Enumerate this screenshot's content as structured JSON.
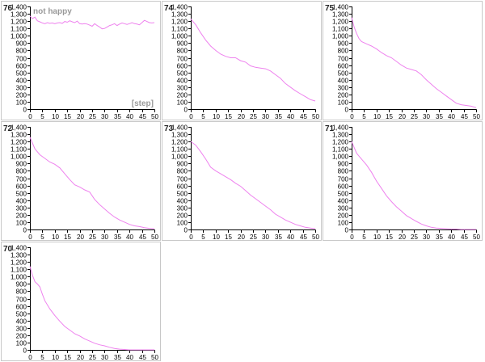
{
  "chart_data": {
    "type": "line",
    "xlim": [
      0,
      50
    ],
    "ylim": [
      0,
      1400
    ],
    "x_ticks": [
      0,
      5,
      10,
      15,
      20,
      25,
      30,
      35,
      40,
      45,
      50
    ],
    "y_ticks": [
      0,
      100,
      200,
      300,
      400,
      500,
      600,
      700,
      800,
      900,
      1000,
      1100,
      1200,
      1300,
      1400
    ],
    "x_tick_labels": [
      "0",
      "5",
      "10",
      "15",
      "20",
      "25",
      "30",
      "35",
      "40",
      "45",
      "50"
    ],
    "y_tick_labels": [
      "0",
      "100",
      "200",
      "300",
      "400",
      "500",
      "600",
      "700",
      "800",
      "900",
      "1,000",
      "1,100",
      "1,200",
      "1,300",
      "1,400"
    ],
    "series_color": "#ee82ee",
    "legend_labels": [
      "not happy",
      "[step]"
    ],
    "panels": [
      {
        "id": "76",
        "x": [
          0,
          1,
          2,
          3,
          4,
          5,
          6,
          7,
          8,
          9,
          10,
          11,
          12,
          13,
          14,
          15,
          16,
          17,
          18,
          19,
          20,
          21,
          22,
          23,
          24,
          25,
          26,
          27,
          28,
          29,
          30,
          31,
          32,
          33,
          34,
          35,
          36,
          37,
          38,
          39,
          40,
          41,
          42,
          43,
          44,
          45,
          46,
          47,
          48,
          49,
          50
        ],
        "y": [
          1270,
          1235,
          1255,
          1205,
          1190,
          1175,
          1165,
          1180,
          1170,
          1175,
          1165,
          1175,
          1180,
          1170,
          1195,
          1185,
          1205,
          1190,
          1180,
          1200,
          1165,
          1160,
          1165,
          1160,
          1145,
          1130,
          1165,
          1140,
          1120,
          1095,
          1100,
          1120,
          1140,
          1150,
          1165,
          1140,
          1160,
          1175,
          1165,
          1155,
          1165,
          1180,
          1165,
          1160,
          1150,
          1180,
          1210,
          1195,
          1180,
          1175,
          1180
        ]
      },
      {
        "id": "74",
        "x": [
          0,
          2,
          4,
          6,
          8,
          10,
          12,
          14,
          16,
          18,
          20,
          22,
          24,
          26,
          28,
          30,
          32,
          34,
          36,
          38,
          40,
          42,
          44,
          46,
          48,
          49,
          50
        ],
        "y": [
          1230,
          1150,
          1040,
          940,
          860,
          800,
          750,
          720,
          700,
          700,
          660,
          640,
          590,
          570,
          560,
          550,
          520,
          470,
          420,
          350,
          300,
          250,
          210,
          170,
          130,
          120,
          110
        ]
      },
      {
        "id": "75",
        "x": [
          0,
          1,
          2,
          3,
          4,
          6,
          8,
          10,
          12,
          14,
          16,
          18,
          20,
          22,
          24,
          26,
          28,
          30,
          32,
          34,
          36,
          38,
          40,
          42,
          44,
          46,
          48,
          50
        ],
        "y": [
          1250,
          1120,
          1030,
          960,
          920,
          890,
          860,
          820,
          770,
          730,
          700,
          650,
          600,
          560,
          540,
          520,
          470,
          400,
          340,
          280,
          230,
          180,
          130,
          80,
          60,
          50,
          40,
          20
        ]
      },
      {
        "id": "72",
        "x": [
          0,
          1,
          2,
          3,
          4,
          6,
          8,
          10,
          12,
          14,
          16,
          18,
          20,
          22,
          24,
          26,
          28,
          30,
          32,
          34,
          36,
          38,
          40,
          42,
          44,
          46,
          48,
          50
        ],
        "y": [
          1260,
          1180,
          1100,
          1060,
          1020,
          970,
          920,
          890,
          840,
          760,
          680,
          610,
          580,
          540,
          510,
          410,
          340,
          280,
          220,
          170,
          130,
          100,
          70,
          50,
          40,
          25,
          15,
          10
        ]
      },
      {
        "id": "73",
        "x": [
          0,
          2,
          4,
          6,
          8,
          10,
          12,
          14,
          16,
          18,
          20,
          22,
          24,
          26,
          28,
          30,
          32,
          34,
          36,
          38,
          40,
          42,
          44,
          46,
          48,
          50
        ],
        "y": [
          1200,
          1150,
          1060,
          960,
          850,
          800,
          760,
          720,
          680,
          630,
          590,
          530,
          470,
          420,
          370,
          320,
          270,
          210,
          170,
          130,
          100,
          70,
          50,
          30,
          20,
          10
        ]
      },
      {
        "id": "71",
        "x": [
          0,
          1,
          2,
          3,
          4,
          6,
          8,
          10,
          12,
          14,
          16,
          18,
          20,
          22,
          24,
          26,
          28,
          30,
          32,
          34,
          36,
          38,
          40,
          42,
          44,
          46,
          48,
          50
        ],
        "y": [
          1200,
          1120,
          1040,
          1000,
          960,
          880,
          780,
          660,
          560,
          460,
          380,
          310,
          250,
          190,
          150,
          110,
          75,
          50,
          30,
          20,
          15,
          10,
          5,
          5,
          0,
          0,
          0,
          0
        ]
      },
      {
        "id": "70",
        "x": [
          0,
          1,
          2,
          3,
          4,
          5,
          6,
          8,
          10,
          12,
          14,
          16,
          18,
          20,
          22,
          24,
          26,
          28,
          30,
          32,
          34,
          36,
          38,
          40,
          42,
          44,
          46,
          48,
          50
        ],
        "y": [
          1140,
          1020,
          930,
          900,
          860,
          760,
          670,
          560,
          470,
          390,
          320,
          270,
          220,
          190,
          150,
          120,
          90,
          70,
          55,
          35,
          20,
          10,
          5,
          0,
          0,
          0,
          0,
          0,
          0
        ]
      }
    ]
  }
}
